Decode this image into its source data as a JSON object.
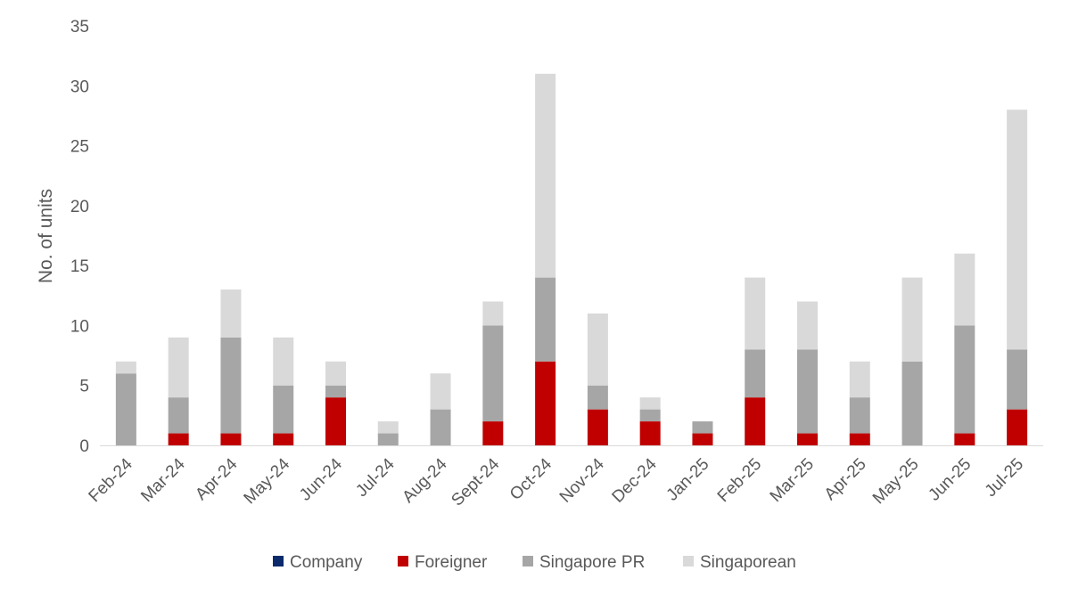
{
  "chart_data": {
    "type": "bar",
    "stacked": true,
    "title": "",
    "xlabel": "",
    "ylabel": "No. of units",
    "ylim": [
      0,
      35
    ],
    "yticks": [
      0,
      5,
      10,
      15,
      20,
      25,
      30,
      35
    ],
    "grid": false,
    "legend_position": "bottom",
    "categories": [
      "Feb-24",
      "Mar-24",
      "Apr-24",
      "May-24",
      "Jun-24",
      "Jul-24",
      "Aug-24",
      "Sept-24",
      "Oct-24",
      "Nov-24",
      "Dec-24",
      "Jan-25",
      "Feb-25",
      "Mar-25",
      "Apr-25",
      "May-25",
      "Jun-25",
      "Jul-25"
    ],
    "series": [
      {
        "name": "Company",
        "color": "#0b2a6b",
        "values": [
          0,
          0,
          0,
          0,
          0,
          0,
          0,
          0,
          0,
          0,
          0,
          0,
          0,
          0,
          0,
          0,
          0,
          0
        ]
      },
      {
        "name": "Foreigner",
        "color": "#c00000",
        "values": [
          0,
          1,
          1,
          1,
          4,
          0,
          0,
          2,
          7,
          3,
          2,
          1,
          4,
          1,
          1,
          0,
          1,
          3
        ]
      },
      {
        "name": "Singapore PR",
        "color": "#a6a6a6",
        "values": [
          6,
          3,
          8,
          4,
          1,
          1,
          3,
          8,
          7,
          2,
          1,
          1,
          4,
          7,
          3,
          7,
          9,
          5
        ]
      },
      {
        "name": "Singaporean",
        "color": "#d9d9d9",
        "values": [
          1,
          5,
          4,
          4,
          2,
          1,
          3,
          2,
          17,
          6,
          1,
          0,
          6,
          4,
          3,
          7,
          6,
          20
        ]
      }
    ]
  }
}
